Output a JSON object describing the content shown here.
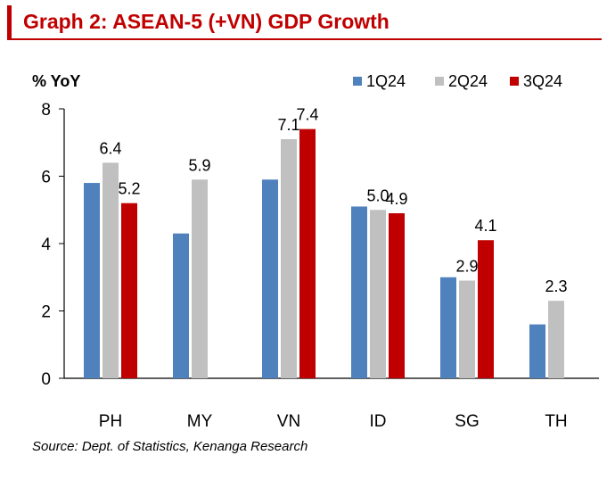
{
  "header": {
    "title": "Graph 2: ASEAN-5 (+VN) GDP Growth"
  },
  "source": "Source:  Dept. of Statistics, Kenanga Research",
  "colors": {
    "accent": "#C00000"
  },
  "chart_data": {
    "type": "bar",
    "title": "Graph 2: ASEAN-5 (+VN) GDP Growth",
    "ylabel": "% YoY",
    "xlabel": "",
    "ylim": [
      0,
      8
    ],
    "yticks": [
      0,
      2,
      4,
      6,
      8
    ],
    "grid": false,
    "legend_position": "top-right",
    "categories": [
      "PH",
      "MY",
      "VN",
      "ID",
      "SG",
      "TH"
    ],
    "series": [
      {
        "name": "1Q24",
        "color": "#4F81BD",
        "values": [
          5.8,
          4.3,
          5.9,
          5.1,
          3.0,
          1.6
        ],
        "labels": [
          null,
          null,
          null,
          null,
          null,
          null
        ]
      },
      {
        "name": "2Q24",
        "color": "#C0C0C0",
        "values": [
          6.4,
          5.9,
          7.1,
          5.0,
          2.9,
          2.3
        ],
        "labels": [
          "6.4",
          "5.9",
          "7.1",
          "5.0",
          "2.9",
          "2.3"
        ]
      },
      {
        "name": "3Q24",
        "color": "#C00000",
        "values": [
          5.2,
          null,
          7.4,
          4.9,
          4.1,
          null
        ],
        "labels": [
          "5.2",
          null,
          "7.4",
          "4.9",
          "4.1",
          null
        ]
      }
    ]
  }
}
